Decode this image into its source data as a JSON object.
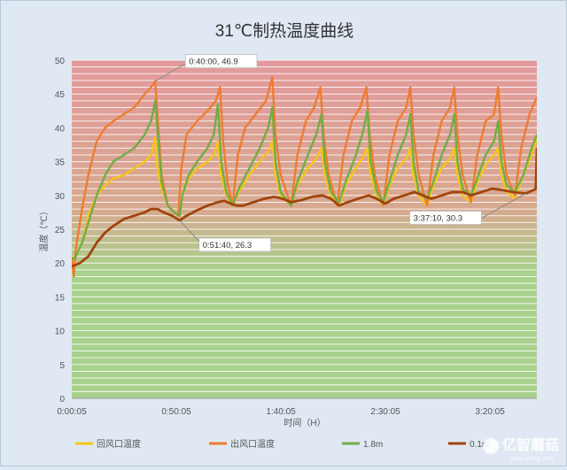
{
  "chart_data": {
    "type": "line",
    "title": "31℃制热温度曲线",
    "xlabel": "时间（H）",
    "ylabel": "温度（℃）",
    "ylim": [
      0,
      50
    ],
    "yticks": [
      0,
      5,
      10,
      15,
      20,
      25,
      30,
      35,
      40,
      45,
      50
    ],
    "xticks": [
      "0:00:05",
      "0:50:05",
      "1:40:05",
      "2:30:05",
      "3:20:05"
    ],
    "xrange": [
      "0:00:05",
      "3:42:30"
    ],
    "grid": true,
    "legend_position": "bottom",
    "series": [
      {
        "name": "回风口温度",
        "color": "#f5c518",
        "points": [
          [
            "0:00:05",
            20
          ],
          [
            "0:02:00",
            21
          ],
          [
            "0:05:00",
            23
          ],
          [
            "0:08:00",
            27
          ],
          [
            "0:12:00",
            30
          ],
          [
            "0:16:00",
            31.5
          ],
          [
            "0:20:00",
            32.5
          ],
          [
            "0:25:00",
            33
          ],
          [
            "0:30:00",
            34
          ],
          [
            "0:35:00",
            35
          ],
          [
            "0:38:00",
            36
          ],
          [
            "0:40:00",
            38.5
          ],
          [
            "0:41:00",
            34
          ],
          [
            "0:43:00",
            31
          ],
          [
            "0:46:00",
            28.5
          ],
          [
            "0:49:00",
            27.5
          ],
          [
            "0:51:40",
            27
          ],
          [
            "0:53:00",
            30
          ],
          [
            "0:56:00",
            32.5
          ],
          [
            "1:00:00",
            34
          ],
          [
            "1:05:00",
            35
          ],
          [
            "1:08:00",
            36
          ],
          [
            "1:10:00",
            38
          ],
          [
            "1:11:30",
            33
          ],
          [
            "1:14:00",
            30
          ],
          [
            "1:17:00",
            28.5
          ],
          [
            "1:20:00",
            30.5
          ],
          [
            "1:25:00",
            33
          ],
          [
            "1:30:00",
            35
          ],
          [
            "1:34:00",
            36.5
          ],
          [
            "1:36:00",
            38
          ],
          [
            "1:37:30",
            33
          ],
          [
            "1:40:00",
            30
          ],
          [
            "1:45:00",
            28.5
          ],
          [
            "1:48:00",
            31.5
          ],
          [
            "1:53:00",
            34
          ],
          [
            "1:57:00",
            35.5
          ],
          [
            "1:59:30",
            37
          ],
          [
            "2:01:00",
            33
          ],
          [
            "2:04:00",
            30
          ],
          [
            "2:08:00",
            28.5
          ],
          [
            "2:11:00",
            31.5
          ],
          [
            "2:16:00",
            34
          ],
          [
            "2:19:00",
            35.5
          ],
          [
            "2:21:30",
            37
          ],
          [
            "2:23:00",
            33
          ],
          [
            "2:26:00",
            30
          ],
          [
            "2:29:00",
            28.5
          ],
          [
            "2:32:00",
            31.5
          ],
          [
            "2:36:00",
            34
          ],
          [
            "2:40:00",
            35.5
          ],
          [
            "2:42:00",
            37
          ],
          [
            "2:43:30",
            33
          ],
          [
            "2:46:00",
            30
          ],
          [
            "2:50:00",
            28.5
          ],
          [
            "2:53:00",
            31.5
          ],
          [
            "2:57:00",
            34
          ],
          [
            "3:01:00",
            35.5
          ],
          [
            "3:03:00",
            37
          ],
          [
            "3:04:30",
            33
          ],
          [
            "3:07:00",
            30
          ],
          [
            "3:11:00",
            29
          ],
          [
            "3:14:00",
            32
          ],
          [
            "3:18:00",
            34.5
          ],
          [
            "3:22:00",
            36
          ],
          [
            "3:24:00",
            37
          ],
          [
            "3:25:30",
            33
          ],
          [
            "3:28:00",
            30.5
          ],
          [
            "3:32:00",
            29.5
          ],
          [
            "3:36:00",
            33
          ],
          [
            "3:40:00",
            36
          ],
          [
            "3:42:30",
            38.5
          ]
        ]
      },
      {
        "name": "出风口温度",
        "color": "#ed7d31",
        "points": [
          [
            "0:00:05",
            21
          ],
          [
            "0:01:00",
            18
          ],
          [
            "0:02:00",
            22
          ],
          [
            "0:05:00",
            28
          ],
          [
            "0:08:00",
            33
          ],
          [
            "0:12:00",
            38
          ],
          [
            "0:16:00",
            40
          ],
          [
            "0:20:00",
            41
          ],
          [
            "0:25:00",
            42
          ],
          [
            "0:30:00",
            43
          ],
          [
            "0:35:00",
            45
          ],
          [
            "0:38:00",
            46
          ],
          [
            "0:40:00",
            46.9
          ],
          [
            "0:41:30",
            40
          ],
          [
            "0:43:00",
            33
          ],
          [
            "0:46:00",
            28.5
          ],
          [
            "0:49:00",
            27.5
          ],
          [
            "0:51:00",
            27
          ],
          [
            "0:52:30",
            34
          ],
          [
            "0:55:00",
            39
          ],
          [
            "1:00:00",
            41
          ],
          [
            "1:05:00",
            42.5
          ],
          [
            "1:09:00",
            44
          ],
          [
            "1:11:00",
            46
          ],
          [
            "1:12:30",
            38
          ],
          [
            "1:14:30",
            32
          ],
          [
            "1:17:00",
            28.5
          ],
          [
            "1:19:30",
            36
          ],
          [
            "1:23:00",
            40
          ],
          [
            "1:28:00",
            42
          ],
          [
            "1:33:00",
            44
          ],
          [
            "1:36:00",
            47.5
          ],
          [
            "1:37:30",
            39
          ],
          [
            "1:40:00",
            33
          ],
          [
            "1:45:00",
            28.5
          ],
          [
            "1:48:00",
            36
          ],
          [
            "1:52:00",
            41
          ],
          [
            "1:56:00",
            43
          ],
          [
            "1:59:00",
            46
          ],
          [
            "2:00:30",
            39
          ],
          [
            "2:03:00",
            33
          ],
          [
            "2:07:00",
            28.5
          ],
          [
            "2:10:00",
            36
          ],
          [
            "2:14:00",
            41
          ],
          [
            "2:18:00",
            43
          ],
          [
            "2:21:00",
            46
          ],
          [
            "2:22:30",
            39
          ],
          [
            "2:25:00",
            33
          ],
          [
            "2:29:00",
            28.5
          ],
          [
            "2:32:00",
            36
          ],
          [
            "2:36:00",
            41
          ],
          [
            "2:40:00",
            43
          ],
          [
            "2:42:00",
            46
          ],
          [
            "2:43:30",
            39
          ],
          [
            "2:46:00",
            33
          ],
          [
            "2:50:00",
            28.5
          ],
          [
            "2:53:00",
            36
          ],
          [
            "2:57:00",
            41
          ],
          [
            "3:01:00",
            43
          ],
          [
            "3:03:00",
            46
          ],
          [
            "3:04:30",
            39
          ],
          [
            "3:07:00",
            33
          ],
          [
            "3:11:00",
            29
          ],
          [
            "3:14:00",
            36
          ],
          [
            "3:18:00",
            41
          ],
          [
            "3:22:00",
            42
          ],
          [
            "3:24:00",
            46
          ],
          [
            "3:25:30",
            39
          ],
          [
            "3:28:00",
            33
          ],
          [
            "3:32:00",
            30
          ],
          [
            "3:35:00",
            37
          ],
          [
            "3:39:00",
            42
          ],
          [
            "3:42:30",
            44.5
          ]
        ]
      },
      {
        "name": "1.8m",
        "color": "#70ad47",
        "points": [
          [
            "0:00:05",
            20.5
          ],
          [
            "0:02:00",
            21
          ],
          [
            "0:05:00",
            23
          ],
          [
            "0:08:00",
            26
          ],
          [
            "0:12:00",
            30
          ],
          [
            "0:16:00",
            33
          ],
          [
            "0:20:00",
            35
          ],
          [
            "0:25:00",
            36
          ],
          [
            "0:30:00",
            37
          ],
          [
            "0:35:00",
            39
          ],
          [
            "0:38:00",
            41
          ],
          [
            "0:40:00",
            44
          ],
          [
            "0:41:30",
            38
          ],
          [
            "0:43:00",
            32
          ],
          [
            "0:46:00",
            28.5
          ],
          [
            "0:49:00",
            27.5
          ],
          [
            "0:51:40",
            27
          ],
          [
            "0:53:00",
            30
          ],
          [
            "0:56:00",
            33
          ],
          [
            "1:00:00",
            35
          ],
          [
            "1:05:00",
            37
          ],
          [
            "1:08:00",
            39
          ],
          [
            "1:10:00",
            43.5
          ],
          [
            "1:11:30",
            35
          ],
          [
            "1:14:00",
            30.5
          ],
          [
            "1:17:00",
            28.5
          ],
          [
            "1:20:00",
            31
          ],
          [
            "1:25:00",
            34
          ],
          [
            "1:30:00",
            37
          ],
          [
            "1:34:00",
            40
          ],
          [
            "1:36:00",
            43
          ],
          [
            "1:37:30",
            35
          ],
          [
            "1:40:00",
            30.5
          ],
          [
            "1:45:00",
            28.5
          ],
          [
            "1:48:00",
            32
          ],
          [
            "1:53:00",
            36
          ],
          [
            "1:57:00",
            39
          ],
          [
            "1:59:30",
            42
          ],
          [
            "2:01:00",
            35
          ],
          [
            "2:04:00",
            30.5
          ],
          [
            "2:08:00",
            29
          ],
          [
            "2:11:00",
            32
          ],
          [
            "2:16:00",
            36
          ],
          [
            "2:19:00",
            39
          ],
          [
            "2:21:30",
            42.5
          ],
          [
            "2:23:00",
            35
          ],
          [
            "2:26:00",
            30.5
          ],
          [
            "2:29:00",
            29
          ],
          [
            "2:32:00",
            32
          ],
          [
            "2:36:00",
            36
          ],
          [
            "2:40:00",
            39
          ],
          [
            "2:42:00",
            42
          ],
          [
            "2:43:30",
            35
          ],
          [
            "2:46:00",
            30.5
          ],
          [
            "2:50:00",
            29.5
          ],
          [
            "2:53:00",
            32
          ],
          [
            "2:57:00",
            36
          ],
          [
            "3:01:00",
            39
          ],
          [
            "3:03:00",
            42
          ],
          [
            "3:04:30",
            35
          ],
          [
            "3:07:00",
            31
          ],
          [
            "3:11:00",
            30
          ],
          [
            "3:14:00",
            32.5
          ],
          [
            "3:18:00",
            36
          ],
          [
            "3:22:00",
            38
          ],
          [
            "3:24:00",
            41
          ],
          [
            "3:25:30",
            35
          ],
          [
            "3:28:00",
            31.5
          ],
          [
            "3:32:00",
            30.5
          ],
          [
            "3:36:00",
            33
          ],
          [
            "3:40:00",
            37
          ],
          [
            "3:42:30",
            39
          ]
        ]
      },
      {
        "name": "0.1m",
        "color": "#a0440c",
        "points": [
          [
            "0:00:05",
            19.5
          ],
          [
            "0:04:00",
            20
          ],
          [
            "0:08:00",
            21
          ],
          [
            "0:12:00",
            23
          ],
          [
            "0:16:00",
            24.5
          ],
          [
            "0:20:00",
            25.5
          ],
          [
            "0:25:00",
            26.5
          ],
          [
            "0:30:00",
            27
          ],
          [
            "0:35:00",
            27.5
          ],
          [
            "0:38:00",
            28
          ],
          [
            "0:41:00",
            28
          ],
          [
            "0:44:00",
            27.5
          ],
          [
            "0:48:00",
            27
          ],
          [
            "0:51:40",
            26.3
          ],
          [
            "0:55:00",
            27
          ],
          [
            "1:00:00",
            27.8
          ],
          [
            "1:05:00",
            28.5
          ],
          [
            "1:10:00",
            29
          ],
          [
            "1:13:00",
            29.2
          ],
          [
            "1:16:00",
            28.8
          ],
          [
            "1:19:00",
            28.5
          ],
          [
            "1:22:00",
            28.5
          ],
          [
            "1:27:00",
            29
          ],
          [
            "1:32:00",
            29.5
          ],
          [
            "1:37:00",
            29.8
          ],
          [
            "1:41:00",
            29.5
          ],
          [
            "1:45:00",
            29
          ],
          [
            "1:50:00",
            29.3
          ],
          [
            "1:55:00",
            29.8
          ],
          [
            "2:00:00",
            30
          ],
          [
            "2:04:00",
            29.5
          ],
          [
            "2:08:00",
            28.5
          ],
          [
            "2:12:00",
            29
          ],
          [
            "2:17:00",
            29.5
          ],
          [
            "2:22:00",
            30
          ],
          [
            "2:26:00",
            29.5
          ],
          [
            "2:30:00",
            28.8
          ],
          [
            "2:34:00",
            29.5
          ],
          [
            "2:39:00",
            30
          ],
          [
            "2:44:00",
            30.5
          ],
          [
            "2:48:00",
            30
          ],
          [
            "2:52:00",
            29.5
          ],
          [
            "2:57:00",
            30
          ],
          [
            "3:02:00",
            30.5
          ],
          [
            "3:07:00",
            30.5
          ],
          [
            "3:11:00",
            30
          ],
          [
            "3:16:00",
            30.5
          ],
          [
            "3:21:00",
            31
          ],
          [
            "3:26:00",
            30.8
          ],
          [
            "3:31:00",
            30.5
          ],
          [
            "3:37:10",
            30.3
          ],
          [
            "3:41:00",
            30.8
          ],
          [
            "3:42:00",
            31
          ],
          [
            "3:42:30",
            37
          ]
        ]
      }
    ],
    "annotations": [
      {
        "text": "0:40:00, 46.9",
        "x": "0:40:00",
        "y": 46.9
      },
      {
        "text": "0:51:40, 26.3",
        "x": "0:51:40",
        "y": 26.3
      },
      {
        "text": "3:37:10, 30.3",
        "x": "3:37:10",
        "y": 30.3
      }
    ],
    "band_colors": {
      "top": "#e39a9c",
      "bottom": "#a9d18e"
    }
  },
  "watermark": {
    "text": "亿智蘑菇",
    "subtext": "www.yzmg.com"
  }
}
